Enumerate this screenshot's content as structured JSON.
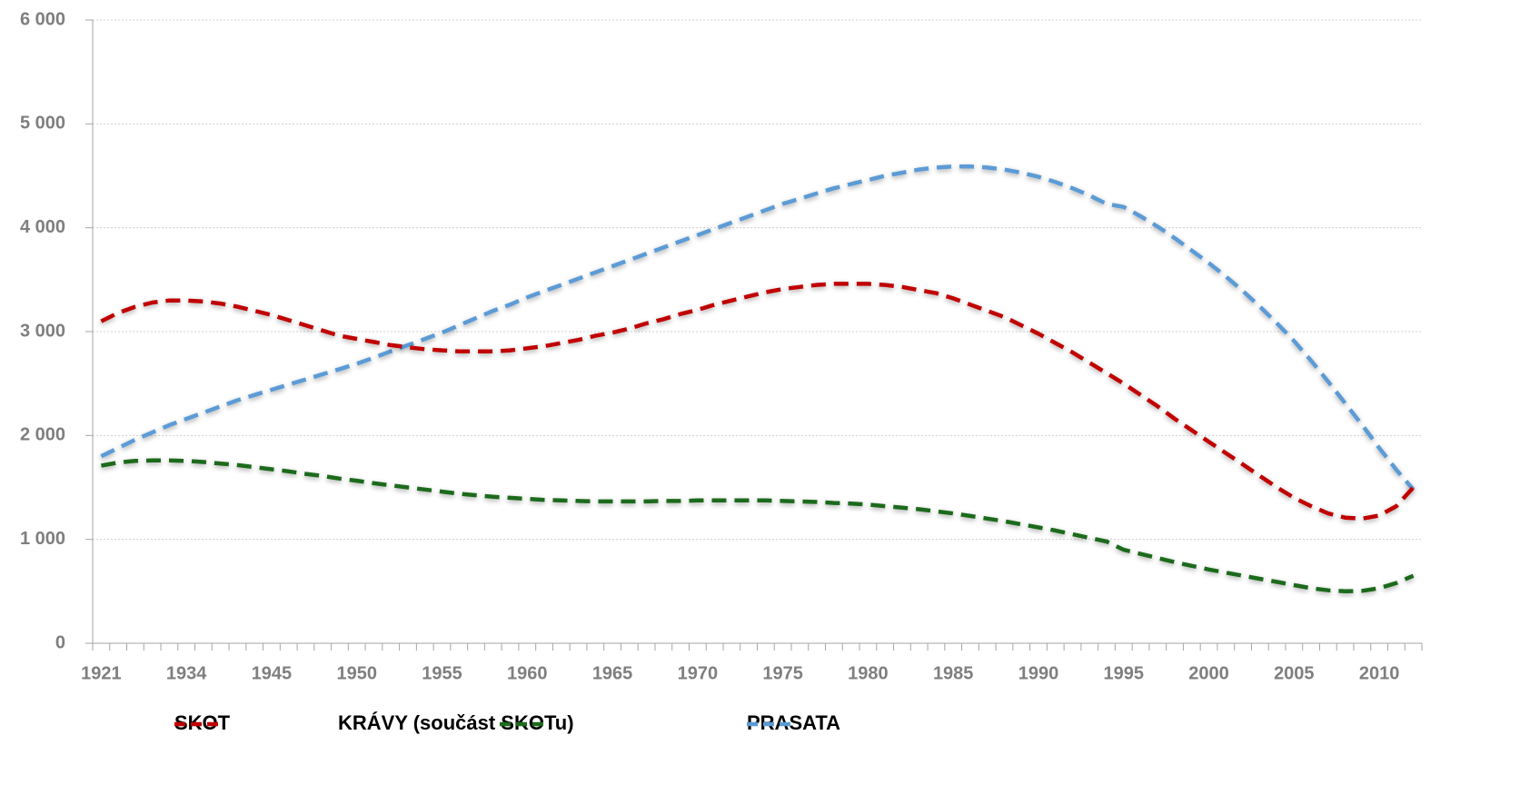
{
  "chart_data": {
    "type": "line",
    "categories": [
      "1921",
      null,
      null,
      null,
      null,
      "1934",
      null,
      null,
      null,
      null,
      "1945",
      null,
      null,
      null,
      null,
      "1950",
      null,
      null,
      null,
      null,
      "1955",
      null,
      null,
      null,
      null,
      "1960",
      null,
      null,
      null,
      null,
      "1965",
      null,
      null,
      null,
      null,
      "1970",
      null,
      null,
      null,
      null,
      "1975",
      null,
      null,
      null,
      null,
      "1980",
      null,
      null,
      null,
      null,
      "1985",
      null,
      null,
      null,
      null,
      "1990",
      null,
      null,
      null,
      null,
      "1995",
      null,
      null,
      null,
      null,
      "2000",
      null,
      null,
      null,
      null,
      "2005",
      null,
      null,
      null,
      null,
      "2010",
      null,
      null
    ],
    "series": [
      {
        "name": "SKOT",
        "color": "#c00000",
        "values": [
          3100,
          3180,
          3240,
          3280,
          3300,
          3300,
          3290,
          3270,
          3240,
          3200,
          3160,
          3110,
          3060,
          3010,
          2960,
          2930,
          2900,
          2870,
          2850,
          2830,
          2820,
          2810,
          2810,
          2810,
          2820,
          2840,
          2860,
          2890,
          2920,
          2960,
          2990,
          3030,
          3080,
          3120,
          3170,
          3210,
          3260,
          3300,
          3340,
          3380,
          3410,
          3430,
          3450,
          3460,
          3460,
          3460,
          3450,
          3430,
          3400,
          3370,
          3320,
          3260,
          3200,
          3140,
          3060,
          2980,
          2890,
          2800,
          2700,
          2600,
          2500,
          2390,
          2280,
          2160,
          2050,
          1940,
          1830,
          1720,
          1610,
          1500,
          1400,
          1320,
          1250,
          1210,
          1200,
          1230,
          1320,
          1500
        ]
      },
      {
        "name": "KRÁVY (součást SKOTu)",
        "color": "#1e6b1e",
        "values": [
          1710,
          1740,
          1755,
          1760,
          1760,
          1755,
          1745,
          1730,
          1715,
          1695,
          1675,
          1655,
          1630,
          1610,
          1585,
          1565,
          1540,
          1520,
          1500,
          1480,
          1460,
          1440,
          1425,
          1410,
          1400,
          1390,
          1380,
          1375,
          1370,
          1365,
          1365,
          1365,
          1365,
          1370,
          1370,
          1375,
          1375,
          1375,
          1375,
          1375,
          1370,
          1365,
          1360,
          1350,
          1345,
          1335,
          1320,
          1305,
          1290,
          1270,
          1250,
          1225,
          1200,
          1175,
          1145,
          1115,
          1085,
          1050,
          1015,
          980,
          900,
          860,
          820,
          780,
          745,
          710,
          680,
          650,
          620,
          590,
          560,
          530,
          510,
          500,
          505,
          530,
          580,
          650
        ]
      },
      {
        "name": "PRASATA",
        "color": "#5b9bd5",
        "values": [
          1800,
          1880,
          1960,
          2030,
          2100,
          2160,
          2220,
          2280,
          2340,
          2390,
          2440,
          2490,
          2540,
          2590,
          2640,
          2690,
          2750,
          2810,
          2870,
          2930,
          2990,
          3060,
          3130,
          3200,
          3260,
          3330,
          3390,
          3450,
          3510,
          3570,
          3630,
          3690,
          3750,
          3810,
          3870,
          3930,
          3990,
          4050,
          4110,
          4170,
          4230,
          4280,
          4330,
          4380,
          4420,
          4460,
          4500,
          4530,
          4560,
          4580,
          4590,
          4590,
          4580,
          4560,
          4530,
          4490,
          4440,
          4380,
          4310,
          4230,
          4200,
          4110,
          4010,
          3900,
          3780,
          3660,
          3530,
          3390,
          3240,
          3080,
          2910,
          2720,
          2520,
          2310,
          2100,
          1880,
          1670,
          1480
        ]
      }
    ],
    "ylim": [
      0,
      6000
    ],
    "yticks": [
      0,
      {
        "value": 1000,
        "label": "1 000"
      },
      {
        "value": 2000,
        "label": "2 000"
      },
      {
        "value": 3000,
        "label": "3 000"
      },
      {
        "value": 4000,
        "label": "4 000"
      },
      {
        "value": 5000,
        "label": "5 000"
      },
      {
        "value": 6000,
        "label": "6 000"
      }
    ],
    "grid": true
  }
}
